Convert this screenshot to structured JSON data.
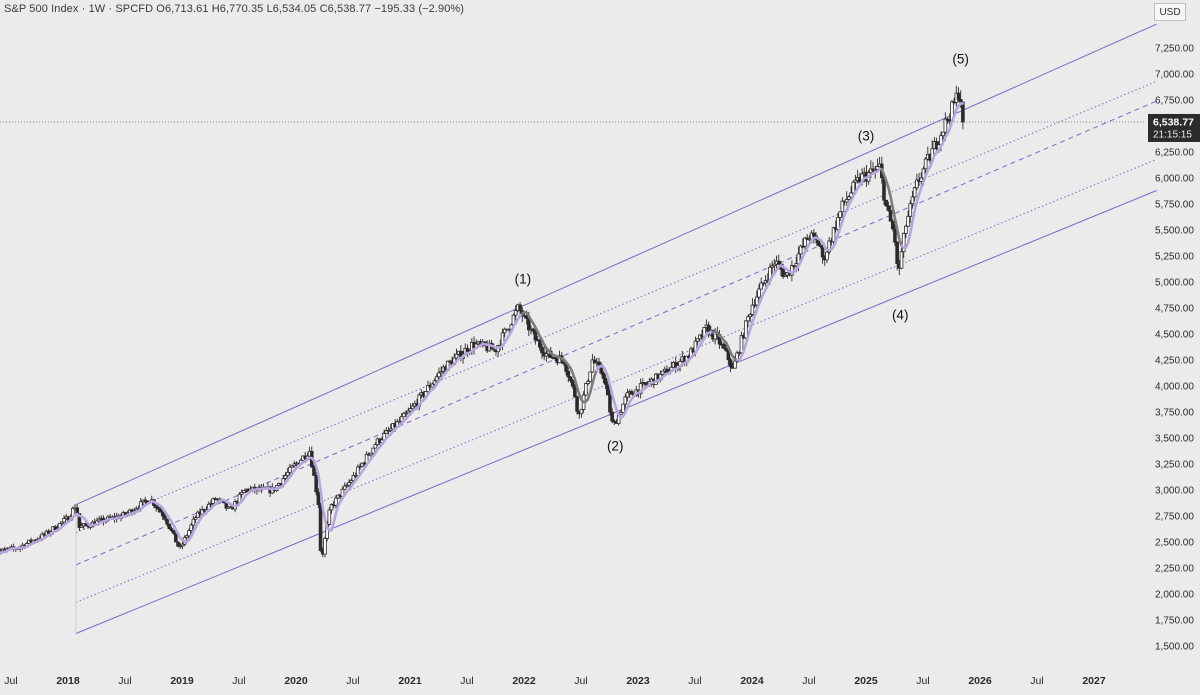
{
  "header": {
    "symbol": "S&P 500 Index",
    "interval": "1W",
    "source": "SPCFD",
    "open": "O6,713.61",
    "high": "H6,770.35",
    "low": "L6,534.05",
    "close": "C6,538.77",
    "change": "−195.33 (−2.90%)"
  },
  "currency": "USD",
  "price_badge": {
    "price": "6,538.77",
    "countdown": "21:15:15"
  },
  "colors": {
    "background": "#ebebeb",
    "candle": "#2b2b2b",
    "ma_purple": "#b8a4dc",
    "ma_gray": "#7d7d7d",
    "channel": "#7a68c8",
    "price_line": "#8c8c8c",
    "badge_bg": "#2b2b2b"
  },
  "chart_data": {
    "type": "candlestick",
    "title": "S&P 500 Index · 1W · SPCFD",
    "y_axis": {
      "min": 1400,
      "max": 7450,
      "ticks": [
        1500,
        1750,
        2000,
        2250,
        2500,
        2750,
        3000,
        3250,
        3500,
        3750,
        4000,
        4250,
        4500,
        4750,
        5000,
        5250,
        5500,
        5750,
        6000,
        6250,
        6500,
        6750,
        7000,
        7250
      ],
      "tick_labels": [
        "1,500.00",
        "1,750.00",
        "2,000.00",
        "2,250.00",
        "2,500.00",
        "2,750.00",
        "3,000.00",
        "3,250.00",
        "3,500.00",
        "3,750.00",
        "4,000.00",
        "4,250.00",
        "4,500.00",
        "4,750.00",
        "5,000.00",
        "5,250.00",
        "5,500.00",
        "5,750.00",
        "6,000.00",
        "6,250.00",
        "6,500.00",
        "6,750.00",
        "7,000.00",
        "7,250.00"
      ]
    },
    "x_axis": {
      "min": 2017.35,
      "max": 2027.55,
      "ticks": [
        {
          "t": 2017.5,
          "label": "Jul"
        },
        {
          "t": 2018.0,
          "label": "2018"
        },
        {
          "t": 2018.5,
          "label": "Jul"
        },
        {
          "t": 2019.0,
          "label": "2019"
        },
        {
          "t": 2019.5,
          "label": "Jul"
        },
        {
          "t": 2020.0,
          "label": "2020"
        },
        {
          "t": 2020.5,
          "label": "Jul"
        },
        {
          "t": 2021.0,
          "label": "2021"
        },
        {
          "t": 2021.5,
          "label": "Jul"
        },
        {
          "t": 2022.0,
          "label": "2022"
        },
        {
          "t": 2022.5,
          "label": "Jul"
        },
        {
          "t": 2023.0,
          "label": "2023"
        },
        {
          "t": 2023.5,
          "label": "Jul"
        },
        {
          "t": 2024.0,
          "label": "2024"
        },
        {
          "t": 2024.5,
          "label": "Jul"
        },
        {
          "t": 2025.0,
          "label": "2025"
        },
        {
          "t": 2025.5,
          "label": "Jul"
        },
        {
          "t": 2026.0,
          "label": "2026"
        },
        {
          "t": 2026.5,
          "label": "Jul"
        },
        {
          "t": 2027.0,
          "label": "2027"
        }
      ]
    },
    "price_path": [
      [
        2017.35,
        2400
      ],
      [
        2017.55,
        2440
      ],
      [
        2017.8,
        2570
      ],
      [
        2018.0,
        2730
      ],
      [
        2018.07,
        2860
      ],
      [
        2018.1,
        2640
      ],
      [
        2018.25,
        2690
      ],
      [
        2018.5,
        2760
      ],
      [
        2018.72,
        2920
      ],
      [
        2018.85,
        2740
      ],
      [
        2018.98,
        2430
      ],
      [
        2019.12,
        2740
      ],
      [
        2019.3,
        2920
      ],
      [
        2019.42,
        2800
      ],
      [
        2019.55,
        3000
      ],
      [
        2019.8,
        3000
      ],
      [
        2019.98,
        3230
      ],
      [
        2020.12,
        3380
      ],
      [
        2020.2,
        2850
      ],
      [
        2020.22,
        2300
      ],
      [
        2020.3,
        2830
      ],
      [
        2020.5,
        3120
      ],
      [
        2020.7,
        3450
      ],
      [
        2020.9,
        3650
      ],
      [
        2021.0,
        3760
      ],
      [
        2021.3,
        4180
      ],
      [
        2021.55,
        4400
      ],
      [
        2021.75,
        4350
      ],
      [
        2021.95,
        4750
      ],
      [
        2022.1,
        4450
      ],
      [
        2022.2,
        4300
      ],
      [
        2022.35,
        4250
      ],
      [
        2022.45,
        3900
      ],
      [
        2022.48,
        3700
      ],
      [
        2022.6,
        4250
      ],
      [
        2022.7,
        4100
      ],
      [
        2022.78,
        3600
      ],
      [
        2022.9,
        3900
      ],
      [
        2023.05,
        4000
      ],
      [
        2023.2,
        4100
      ],
      [
        2023.45,
        4300
      ],
      [
        2023.6,
        4550
      ],
      [
        2023.7,
        4450
      ],
      [
        2023.8,
        4250
      ],
      [
        2023.83,
        4150
      ],
      [
        2024.0,
        4780
      ],
      [
        2024.2,
        5200
      ],
      [
        2024.3,
        5050
      ],
      [
        2024.5,
        5450
      ],
      [
        2024.6,
        5350
      ],
      [
        2024.62,
        5200
      ],
      [
        2024.8,
        5750
      ],
      [
        2024.95,
        6000
      ],
      [
        2025.05,
        6050
      ],
      [
        2025.12,
        6100
      ],
      [
        2025.18,
        5700
      ],
      [
        2025.25,
        5450
      ],
      [
        2025.28,
        5050
      ],
      [
        2025.35,
        5550
      ],
      [
        2025.45,
        5950
      ],
      [
        2025.6,
        6300
      ],
      [
        2025.75,
        6650
      ],
      [
        2025.82,
        6850
      ],
      [
        2025.86,
        6538.77
      ]
    ],
    "channel": {
      "t0": 2018.07,
      "t1": 2027.55,
      "upper": [
        2860,
        7480
      ],
      "lower": [
        1620,
        5880
      ],
      "dashed_mid": [
        2280,
        6740
      ],
      "dotted_upper": [
        2590,
        6930
      ],
      "dotted_lower": [
        1920,
        6180
      ]
    },
    "last_price": 6538.77,
    "wave_labels": [
      {
        "label": "(1)",
        "t": 2021.99,
        "price": 4985
      },
      {
        "label": "(2)",
        "t": 2022.8,
        "price": 3380
      },
      {
        "label": "(3)",
        "t": 2025.0,
        "price": 6360
      },
      {
        "label": "(4)",
        "t": 2025.3,
        "price": 4640
      },
      {
        "label": "(5)",
        "t": 2025.83,
        "price": 7100
      }
    ]
  }
}
